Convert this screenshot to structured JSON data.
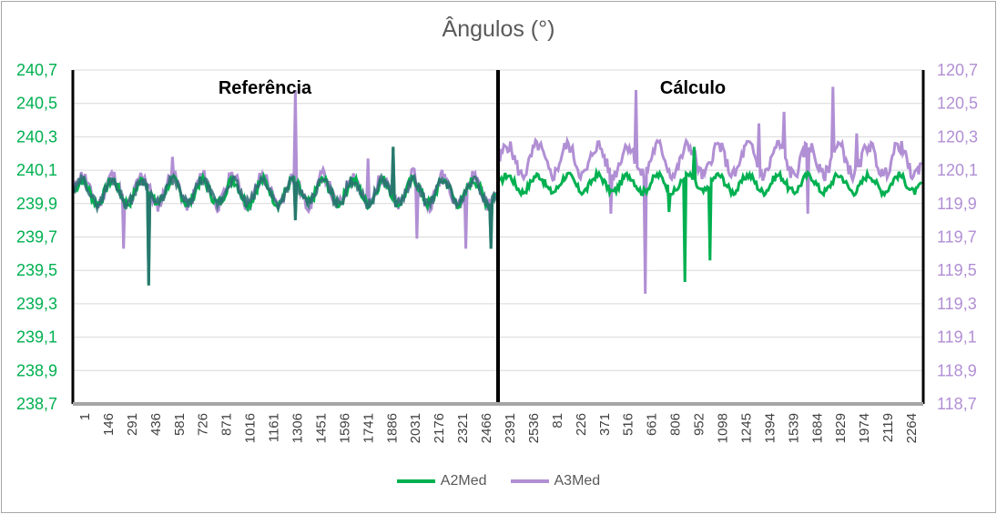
{
  "chart_data": {
    "type": "line",
    "title": "Ângulos (°)",
    "annotations": [
      "Referência",
      "Cálculo"
    ],
    "y_left": {
      "ticks": [
        "238,7",
        "238,9",
        "239,1",
        "239,3",
        "239,5",
        "239,7",
        "239,9",
        "240,1",
        "240,3",
        "240,5",
        "240,7"
      ],
      "range": [
        238.7,
        240.7
      ],
      "color": "#00b050"
    },
    "y_right": {
      "ticks": [
        "118,7",
        "118,9",
        "119,1",
        "119,3",
        "119,5",
        "119,7",
        "119,9",
        "120,1",
        "120,3",
        "120,5",
        "120,7"
      ],
      "range": [
        118.7,
        120.7
      ],
      "color": "#b18fd4"
    },
    "x_ticks": [
      "1",
      "146",
      "291",
      "436",
      "581",
      "726",
      "871",
      "1016",
      "1161",
      "1306",
      "1451",
      "1596",
      "1741",
      "1886",
      "2031",
      "2176",
      "2321",
      "2466",
      "2391",
      "2536",
      "81",
      "226",
      "371",
      "516",
      "661",
      "806",
      "952",
      "1098",
      "1245",
      "1394",
      "1539",
      "1684",
      "1829",
      "1974",
      "2119",
      "2264"
    ],
    "grid": true,
    "legend": {
      "position": "bottom"
    },
    "series": [
      {
        "name": "A2Med",
        "axis": "left",
        "color": "#00b050",
        "sections": {
          "referencia": {
            "base": 239.97,
            "amplitude": 0.07,
            "spikes": [
              [
                436,
                239.41
              ],
              [
                1886,
                240.24
              ],
              [
                2466,
                239.63
              ],
              [
                1306,
                239.8
              ]
            ]
          },
          "calculo": {
            "base": 240.02,
            "amplitude": 0.05,
            "spikes": [
              [
                1098,
                239.43
              ],
              [
                1150,
                240.24
              ],
              [
                1245,
                239.56
              ],
              [
                1000,
                239.85
              ]
            ]
          }
        }
      },
      {
        "name": "A3Med",
        "axis": "right",
        "color": "#b18fd4",
        "sections": {
          "referencia": {
            "base": 119.98,
            "amplitude": 0.09,
            "spikes": [
              [
                1306,
                120.58
              ],
              [
                291,
                119.63
              ],
              [
                581,
                120.18
              ],
              [
                1741,
                120.17
              ],
              [
                2031,
                119.69
              ],
              [
                2321,
                119.63
              ]
            ]
          },
          "calculo": {
            "base": 120.16,
            "amplitude": 0.09,
            "spikes": [
              [
                806,
                120.58
              ],
              [
                860,
                119.36
              ],
              [
                1539,
                120.38
              ],
              [
                1684,
                120.45
              ],
              [
                1974,
                120.6
              ],
              [
                1829,
                119.84
              ],
              [
                661,
                119.84
              ],
              [
                2119,
                120.32
              ]
            ]
          }
        }
      }
    ]
  }
}
